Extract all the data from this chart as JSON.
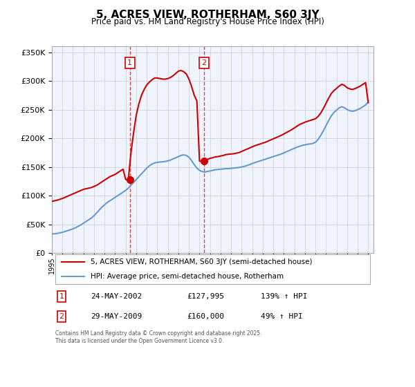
{
  "title": "5, ACRES VIEW, ROTHERHAM, S60 3JY",
  "subtitle": "Price paid vs. HM Land Registry's House Price Index (HPI)",
  "hpi_color": "#6699cc",
  "price_color": "#cc0000",
  "annotation_color": "#cc0000",
  "background_color": "#f0f4ff",
  "plot_bg": "#ffffff",
  "ylim": [
    0,
    360000
  ],
  "yticks": [
    0,
    50000,
    100000,
    150000,
    200000,
    250000,
    300000,
    350000
  ],
  "xlim_start": 1995.0,
  "xlim_end": 2025.5,
  "sale1_date": 2002.39,
  "sale1_price": 127995,
  "sale2_date": 2009.41,
  "sale2_price": 160000,
  "legend_label_price": "5, ACRES VIEW, ROTHERHAM, S60 3JY (semi-detached house)",
  "legend_label_hpi": "HPI: Average price, semi-detached house, Rotherham",
  "table_entries": [
    {
      "num": "1",
      "date": "24-MAY-2002",
      "price": "£127,995",
      "hpi": "139% ↑ HPI"
    },
    {
      "num": "2",
      "date": "29-MAY-2009",
      "price": "£160,000",
      "hpi": "49% ↑ HPI"
    }
  ],
  "footer": "Contains HM Land Registry data © Crown copyright and database right 2025.\nThis data is licensed under the Open Government Licence v3.0.",
  "hpi_x": [
    1995.0,
    1995.25,
    1995.5,
    1995.75,
    1996.0,
    1996.25,
    1996.5,
    1996.75,
    1997.0,
    1997.25,
    1997.5,
    1997.75,
    1998.0,
    1998.25,
    1998.5,
    1998.75,
    1999.0,
    1999.25,
    1999.5,
    1999.75,
    2000.0,
    2000.25,
    2000.5,
    2000.75,
    2001.0,
    2001.25,
    2001.5,
    2001.75,
    2002.0,
    2002.25,
    2002.5,
    2002.75,
    2003.0,
    2003.25,
    2003.5,
    2003.75,
    2004.0,
    2004.25,
    2004.5,
    2004.75,
    2005.0,
    2005.25,
    2005.5,
    2005.75,
    2006.0,
    2006.25,
    2006.5,
    2006.75,
    2007.0,
    2007.25,
    2007.5,
    2007.75,
    2008.0,
    2008.25,
    2008.5,
    2008.75,
    2009.0,
    2009.25,
    2009.5,
    2009.75,
    2010.0,
    2010.25,
    2010.5,
    2010.75,
    2011.0,
    2011.25,
    2011.5,
    2011.75,
    2012.0,
    2012.25,
    2012.5,
    2012.75,
    2013.0,
    2013.25,
    2013.5,
    2013.75,
    2014.0,
    2014.25,
    2014.5,
    2014.75,
    2015.0,
    2015.25,
    2015.5,
    2015.75,
    2016.0,
    2016.25,
    2016.5,
    2016.75,
    2017.0,
    2017.25,
    2017.5,
    2017.75,
    2018.0,
    2018.25,
    2018.5,
    2018.75,
    2019.0,
    2019.25,
    2019.5,
    2019.75,
    2020.0,
    2020.25,
    2020.5,
    2020.75,
    2021.0,
    2021.25,
    2021.5,
    2021.75,
    2022.0,
    2022.25,
    2022.5,
    2022.75,
    2023.0,
    2023.25,
    2023.5,
    2023.75,
    2024.0,
    2024.25,
    2024.5,
    2024.75,
    2025.0
  ],
  "hpi_y": [
    33000,
    33500,
    34000,
    35000,
    36000,
    37500,
    39000,
    40500,
    42000,
    44000,
    46500,
    49000,
    52000,
    55000,
    58000,
    61000,
    65000,
    70000,
    75000,
    80000,
    84000,
    88000,
    91000,
    94000,
    97000,
    100000,
    103000,
    106000,
    109000,
    113000,
    118000,
    123000,
    128000,
    133000,
    138000,
    143000,
    148000,
    152000,
    155000,
    157000,
    158000,
    158500,
    159000,
    159500,
    160500,
    162000,
    164000,
    166000,
    168000,
    170000,
    171000,
    170000,
    167000,
    161000,
    154000,
    148000,
    144000,
    142000,
    141000,
    142000,
    143000,
    144000,
    145000,
    145500,
    146000,
    146500,
    147000,
    147000,
    147500,
    148000,
    148500,
    149000,
    150000,
    151000,
    152500,
    154000,
    156000,
    157500,
    159000,
    160500,
    162000,
    163500,
    165000,
    166500,
    168000,
    169500,
    171000,
    172500,
    174500,
    176500,
    178500,
    180500,
    182500,
    184500,
    186000,
    187500,
    188500,
    189500,
    190000,
    191000,
    193000,
    198000,
    205000,
    213000,
    222000,
    231000,
    239000,
    245000,
    249000,
    253000,
    255000,
    253000,
    250000,
    248000,
    247000,
    248000,
    250000,
    252000,
    255000,
    258000,
    263000
  ],
  "price_x": [
    1995.0,
    1995.25,
    1995.5,
    1995.75,
    1996.0,
    1996.25,
    1996.5,
    1996.75,
    1997.0,
    1997.25,
    1997.5,
    1997.75,
    1998.0,
    1998.25,
    1998.5,
    1998.75,
    1999.0,
    1999.25,
    1999.5,
    1999.75,
    2000.0,
    2000.25,
    2000.5,
    2000.75,
    2001.0,
    2001.25,
    2001.5,
    2001.75,
    2002.0,
    2002.25,
    2002.5,
    2002.75,
    2003.0,
    2003.25,
    2003.5,
    2003.75,
    2004.0,
    2004.25,
    2004.5,
    2004.75,
    2005.0,
    2005.25,
    2005.5,
    2005.75,
    2006.0,
    2006.25,
    2006.5,
    2006.75,
    2007.0,
    2007.25,
    2007.5,
    2007.75,
    2008.0,
    2008.25,
    2008.5,
    2008.75,
    2009.0,
    2009.25,
    2009.5,
    2009.75,
    2010.0,
    2010.25,
    2010.5,
    2010.75,
    2011.0,
    2011.25,
    2011.5,
    2011.75,
    2012.0,
    2012.25,
    2012.5,
    2012.75,
    2013.0,
    2013.25,
    2013.5,
    2013.75,
    2014.0,
    2014.25,
    2014.5,
    2014.75,
    2015.0,
    2015.25,
    2015.5,
    2015.75,
    2016.0,
    2016.25,
    2016.5,
    2016.75,
    2017.0,
    2017.25,
    2017.5,
    2017.75,
    2018.0,
    2018.25,
    2018.5,
    2018.75,
    2019.0,
    2019.25,
    2019.5,
    2019.75,
    2020.0,
    2020.25,
    2020.5,
    2020.75,
    2021.0,
    2021.25,
    2021.5,
    2021.75,
    2022.0,
    2022.25,
    2022.5,
    2022.75,
    2023.0,
    2023.25,
    2023.5,
    2023.75,
    2024.0,
    2024.25,
    2024.5,
    2024.75,
    2025.0
  ],
  "price_y": [
    90000,
    91000,
    92000,
    93500,
    95000,
    97000,
    99000,
    101000,
    103000,
    105000,
    107000,
    109000,
    111000,
    112000,
    113000,
    114000,
    116000,
    118000,
    121000,
    124000,
    127000,
    130000,
    133000,
    135000,
    137000,
    140000,
    143000,
    146000,
    127995,
    127995,
    175000,
    210000,
    240000,
    260000,
    275000,
    285000,
    293000,
    298000,
    302000,
    305000,
    305000,
    304000,
    303000,
    303000,
    304000,
    306000,
    309000,
    313000,
    317000,
    318000,
    316000,
    312000,
    303000,
    290000,
    275000,
    265000,
    160000,
    160000,
    162000,
    163000,
    165000,
    166000,
    167500,
    168000,
    169000,
    170000,
    171500,
    172000,
    172500,
    173000,
    174000,
    175000,
    177000,
    179000,
    181000,
    183000,
    185000,
    187000,
    188500,
    190000,
    191500,
    193000,
    195000,
    197000,
    199000,
    201000,
    203000,
    205000,
    207500,
    210000,
    212500,
    215000,
    218000,
    221000,
    224000,
    226000,
    228000,
    229500,
    231000,
    232500,
    234000,
    238000,
    244000,
    252000,
    261000,
    270000,
    278000,
    283000,
    287000,
    291000,
    294000,
    292000,
    288000,
    286000,
    285000,
    286500,
    288500,
    291000,
    294000,
    297000,
    262000
  ]
}
